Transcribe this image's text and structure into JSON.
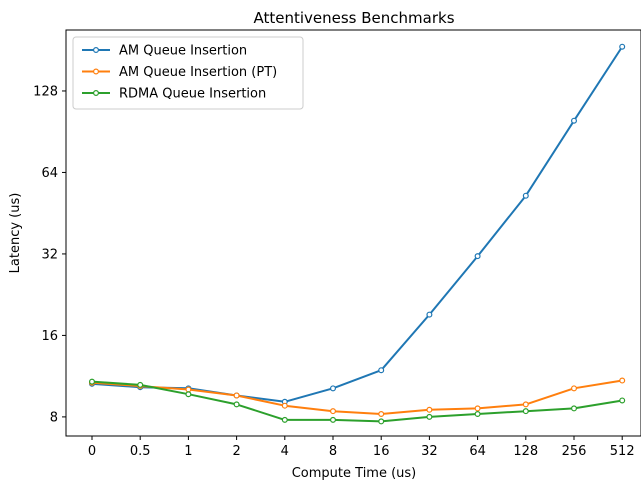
{
  "chart_data": {
    "type": "line",
    "title": "Attentiveness Benchmarks",
    "xlabel": "Compute Time (us)",
    "ylabel": "Latency (us)",
    "x_scale": "categorical",
    "y_scale": "log2",
    "categories": [
      "0",
      "0.5",
      "1",
      "2",
      "4",
      "8",
      "16",
      "32",
      "64",
      "128",
      "256",
      "512"
    ],
    "yticks": [
      8,
      16,
      32,
      64,
      128
    ],
    "ytick_labels": [
      "8",
      "16",
      "32",
      "64",
      "128"
    ],
    "ylim": [
      6.8,
      215
    ],
    "grid": false,
    "legend_position": "top-left",
    "series": [
      {
        "name": "AM Queue Insertion",
        "color": "#1f77b4",
        "values": [
          10.6,
          10.3,
          10.2,
          9.6,
          9.1,
          10.2,
          11.9,
          19.1,
          31.4,
          52.5,
          99.4,
          186.5
        ]
      },
      {
        "name": "AM Queue Insertion (PT)",
        "color": "#ff7f0e",
        "values": [
          10.7,
          10.4,
          10.1,
          9.6,
          8.8,
          8.4,
          8.2,
          8.5,
          8.6,
          8.9,
          10.2,
          10.9
        ]
      },
      {
        "name": "RDMA Queue Insertion",
        "color": "#2ca02c",
        "values": [
          10.8,
          10.5,
          9.7,
          8.9,
          7.8,
          7.8,
          7.7,
          8.0,
          8.2,
          8.4,
          8.6,
          9.2
        ]
      }
    ]
  }
}
